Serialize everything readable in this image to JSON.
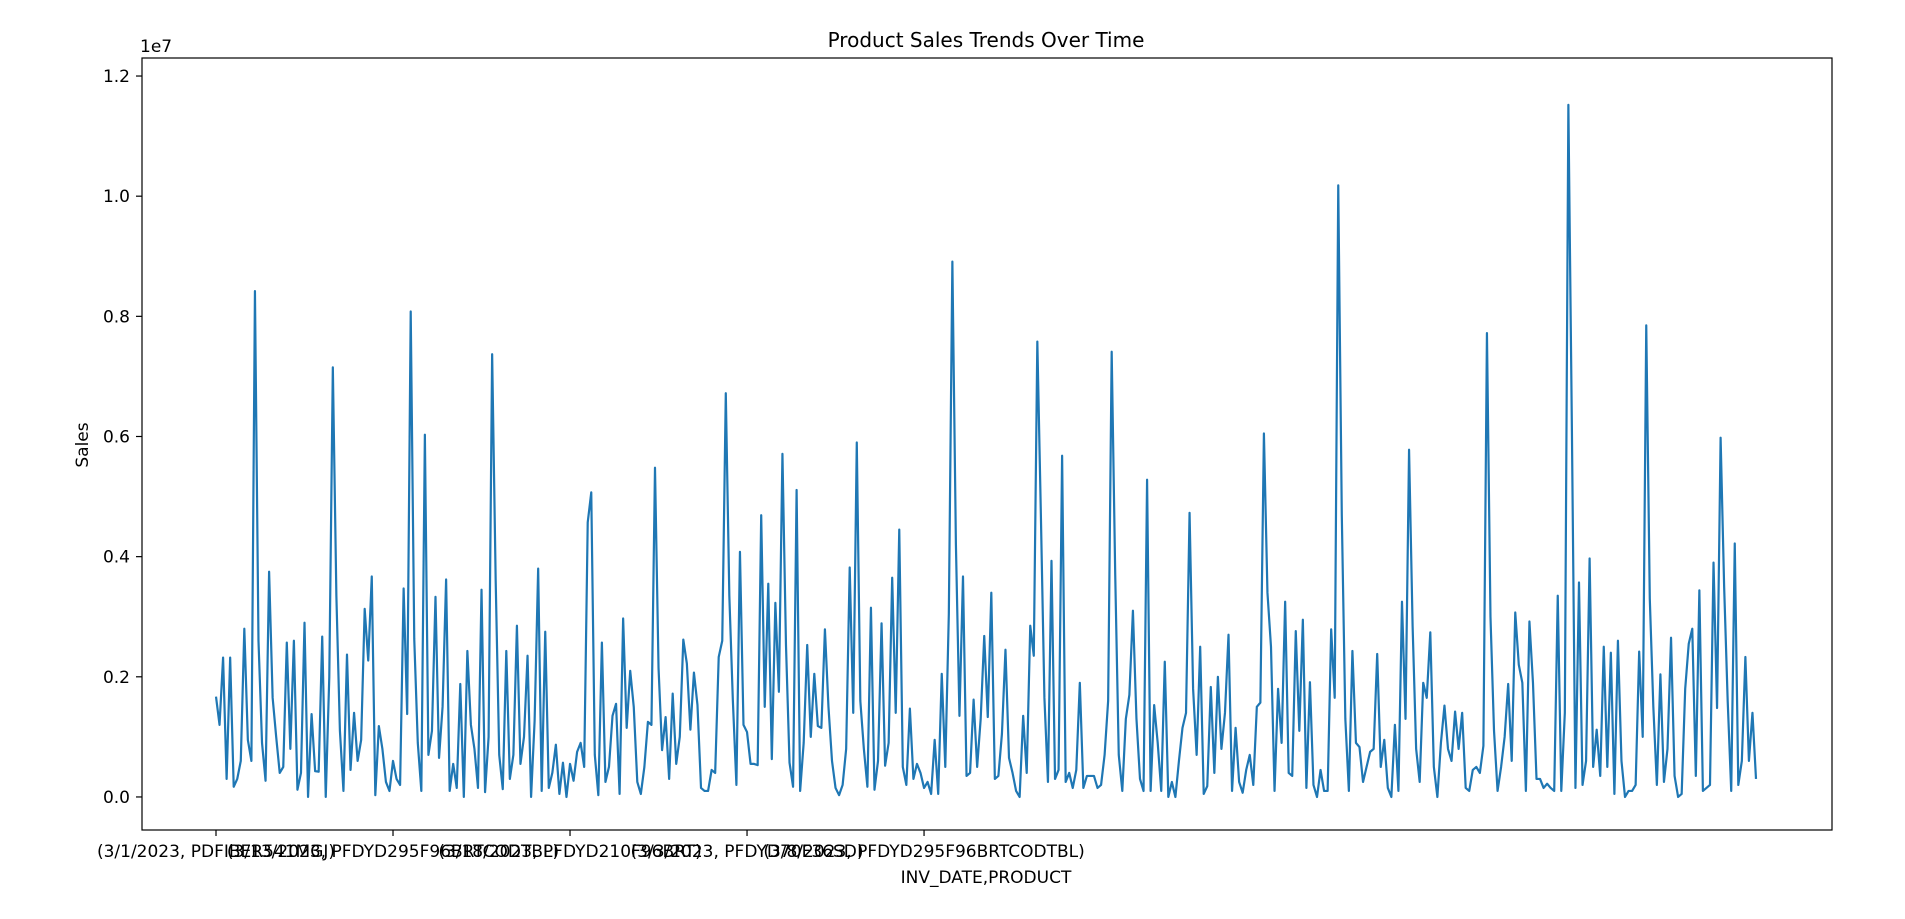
{
  "chart_data": {
    "type": "line",
    "title": "Product Sales Trends Over Time",
    "xlabel": "INV_DATE,PRODUCT",
    "ylabel": "Sales",
    "y_scale_label": "1e7",
    "y_scale": 10000000,
    "ylim": [
      -0.055,
      1.23
    ],
    "yticks": [
      0.0,
      0.2,
      0.4,
      0.6,
      0.8,
      1.0,
      1.2
    ],
    "ytick_labels": [
      "0.0",
      "0.2",
      "0.4",
      "0.6",
      "0.8",
      "1.0",
      "1.2"
    ],
    "x_tick_labels": [
      {
        "index": 0,
        "label": "(3/1/2023, PDFIBER541MGJ)"
      },
      {
        "index": 50,
        "label": "(3/13/2023, PFDYD295F96BRTCODTBL)"
      },
      {
        "index": 100,
        "label": "(3/18/2023, PFDYD210F96BRT)"
      },
      {
        "index": 150,
        "label": "(3/3/2023, PFDYD70F36SD)"
      },
      {
        "index": 200,
        "label": "(3/8/2023, PFDYD295F96BRTCODTBL)"
      }
    ],
    "grid": false,
    "legend": "none",
    "line_color": "#1f77b4",
    "series": [
      {
        "values": [
          0.167,
          0.12,
          0.232,
          0.03,
          0.232,
          0.017,
          0.03,
          0.06,
          0.28,
          0.095,
          0.06,
          0.842,
          0.26,
          0.09,
          0.027,
          0.375,
          0.165,
          0.1,
          0.04,
          0.05,
          0.257,
          0.08,
          0.26,
          0.012,
          0.04,
          0.29,
          0.0,
          0.138,
          0.043,
          0.042,
          0.267,
          0.0,
          0.2,
          0.715,
          0.335,
          0.11,
          0.01,
          0.237,
          0.045,
          0.14,
          0.06,
          0.095,
          0.313,
          0.227,
          0.367,
          0.003,
          0.118,
          0.08,
          0.025,
          0.01,
          0.06,
          0.03,
          0.02,
          0.347,
          0.138,
          0.808,
          0.263,
          0.09,
          0.01,
          0.603,
          0.07,
          0.11,
          0.333,
          0.065,
          0.15,
          0.362,
          0.01,
          0.055,
          0.015,
          0.188,
          0.0,
          0.243,
          0.12,
          0.08,
          0.015,
          0.345,
          0.008,
          0.1,
          0.737,
          0.36,
          0.07,
          0.013,
          0.243,
          0.03,
          0.07,
          0.285,
          0.055,
          0.1,
          0.235,
          0.0,
          0.127,
          0.38,
          0.01,
          0.275,
          0.015,
          0.04,
          0.087,
          0.005,
          0.057,
          0.0,
          0.055,
          0.027,
          0.075,
          0.09,
          0.05,
          0.457,
          0.507,
          0.07,
          0.003,
          0.257,
          0.025,
          0.05,
          0.135,
          0.155,
          0.005,
          0.297,
          0.115,
          0.21,
          0.15,
          0.025,
          0.005,
          0.05,
          0.125,
          0.12,
          0.548,
          0.215,
          0.078,
          0.133,
          0.03,
          0.172,
          0.055,
          0.1,
          0.262,
          0.222,
          0.112,
          0.207,
          0.153,
          0.015,
          0.01,
          0.01,
          0.045,
          0.04,
          0.233,
          0.26,
          0.672,
          0.335,
          0.16,
          0.02,
          0.408,
          0.12,
          0.108,
          0.055,
          0.055,
          0.053,
          0.469,
          0.15,
          0.355,
          0.063,
          0.323,
          0.175,
          0.571,
          0.253,
          0.057,
          0.017,
          0.511,
          0.01,
          0.09,
          0.253,
          0.1,
          0.205,
          0.118,
          0.115,
          0.279,
          0.15,
          0.06,
          0.015,
          0.003,
          0.02,
          0.08,
          0.382,
          0.14,
          0.59,
          0.16,
          0.08,
          0.017,
          0.315,
          0.012,
          0.06,
          0.289,
          0.052,
          0.09,
          0.365,
          0.14,
          0.445,
          0.05,
          0.02,
          0.147,
          0.03,
          0.055,
          0.04,
          0.015,
          0.025,
          0.005,
          0.095,
          0.005,
          0.205,
          0.05,
          0.305,
          0.891,
          0.42,
          0.135,
          0.367,
          0.035,
          0.04,
          0.162,
          0.05,
          0.13,
          0.268,
          0.133,
          0.34,
          0.03,
          0.035,
          0.105,
          0.245,
          0.065,
          0.04,
          0.01,
          0.0,
          0.135,
          0.04,
          0.285,
          0.235,
          0.758,
          0.47,
          0.165,
          0.025,
          0.393,
          0.03,
          0.045,
          0.568,
          0.025,
          0.04,
          0.015,
          0.045,
          0.19,
          0.015,
          0.035,
          0.035,
          0.035,
          0.015,
          0.02,
          0.07,
          0.16,
          0.741,
          0.37,
          0.07,
          0.01,
          0.13,
          0.17,
          0.31,
          0.13,
          0.03,
          0.01,
          0.528,
          0.01,
          0.153,
          0.09,
          0.01,
          0.225,
          0.0,
          0.025,
          0.0,
          0.06,
          0.115,
          0.14,
          0.473,
          0.18,
          0.07,
          0.25,
          0.005,
          0.018,
          0.183,
          0.04,
          0.2,
          0.08,
          0.14,
          0.27,
          0.01,
          0.115,
          0.025,
          0.007,
          0.045,
          0.07,
          0.02,
          0.15,
          0.157,
          0.605,
          0.34,
          0.25,
          0.01,
          0.18,
          0.09,
          0.325,
          0.04,
          0.035,
          0.276,
          0.11,
          0.295,
          0.015,
          0.191,
          0.02,
          0.0,
          0.045,
          0.01,
          0.01,
          0.279,
          0.165,
          1.018,
          0.47,
          0.13,
          0.01,
          0.243,
          0.09,
          0.083,
          0.025,
          0.05,
          0.075,
          0.08,
          0.238,
          0.05,
          0.095,
          0.015,
          0.0,
          0.12,
          0.01,
          0.325,
          0.13,
          0.578,
          0.285,
          0.08,
          0.025,
          0.19,
          0.165,
          0.274,
          0.05,
          0.0,
          0.09,
          0.152,
          0.08,
          0.06,
          0.142,
          0.08,
          0.14,
          0.015,
          0.01,
          0.045,
          0.05,
          0.04,
          0.085,
          0.772,
          0.3,
          0.11,
          0.01,
          0.05,
          0.1,
          0.188,
          0.06,
          0.307,
          0.22,
          0.19,
          0.01,
          0.292,
          0.19,
          0.03,
          0.03,
          0.015,
          0.022,
          0.015,
          0.01,
          0.335,
          0.01,
          0.14,
          1.152,
          0.61,
          0.015,
          0.357,
          0.02,
          0.06,
          0.397,
          0.05,
          0.112,
          0.035,
          0.25,
          0.05,
          0.24,
          0.005,
          0.26,
          0.06,
          0.0,
          0.01,
          0.01,
          0.02,
          0.242,
          0.1,
          0.785,
          0.33,
          0.15,
          0.02,
          0.204,
          0.025,
          0.08,
          0.265,
          0.035,
          0.0,
          0.005,
          0.18,
          0.255,
          0.28,
          0.035,
          0.344,
          0.01,
          0.015,
          0.02,
          0.39,
          0.148,
          0.598,
          0.35,
          0.16,
          0.01,
          0.422,
          0.02,
          0.06,
          0.233,
          0.06,
          0.14,
          0.03
        ]
      }
    ]
  }
}
